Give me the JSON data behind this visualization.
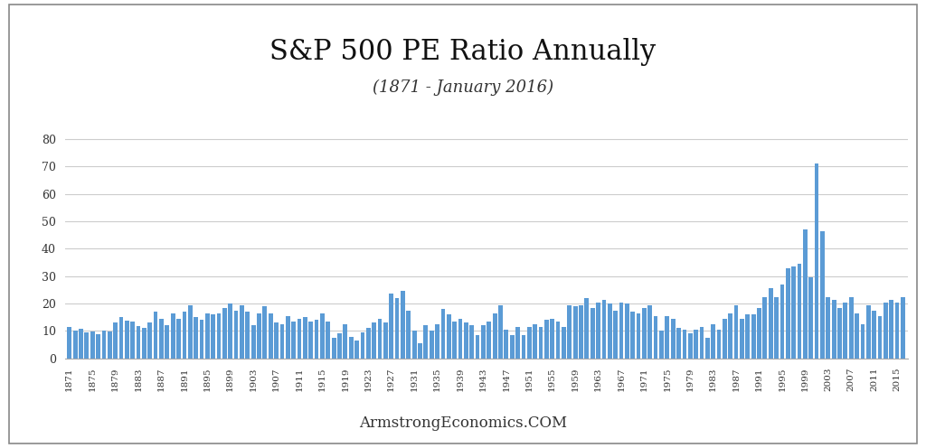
{
  "title": "S&P 500 PE Ratio Annually",
  "subtitle": "(1871 - January 2016)",
  "watermark": "ArmstrongEconomics.COM",
  "bar_color": "#5b9bd5",
  "background_color": "#ffffff",
  "plot_bg_color": "#ffffff",
  "grid_color": "#cccccc",
  "border_color": "#aaaaaa",
  "ylim": [
    0,
    85
  ],
  "yticks": [
    0,
    10,
    20,
    30,
    40,
    50,
    60,
    70,
    80
  ],
  "title_fontsize": 22,
  "subtitle_fontsize": 13,
  "watermark_fontsize": 12,
  "years": [
    1871,
    1872,
    1873,
    1874,
    1875,
    1876,
    1877,
    1878,
    1879,
    1880,
    1881,
    1882,
    1883,
    1884,
    1885,
    1886,
    1887,
    1888,
    1889,
    1890,
    1891,
    1892,
    1893,
    1894,
    1895,
    1896,
    1897,
    1898,
    1899,
    1900,
    1901,
    1902,
    1903,
    1904,
    1905,
    1906,
    1907,
    1908,
    1909,
    1910,
    1911,
    1912,
    1913,
    1914,
    1915,
    1916,
    1917,
    1918,
    1919,
    1920,
    1921,
    1922,
    1923,
    1924,
    1925,
    1926,
    1927,
    1928,
    1929,
    1930,
    1931,
    1932,
    1933,
    1934,
    1935,
    1936,
    1937,
    1938,
    1939,
    1940,
    1941,
    1942,
    1943,
    1944,
    1945,
    1946,
    1947,
    1948,
    1949,
    1950,
    1951,
    1952,
    1953,
    1954,
    1955,
    1956,
    1957,
    1958,
    1959,
    1960,
    1961,
    1962,
    1963,
    1964,
    1965,
    1966,
    1967,
    1968,
    1969,
    1970,
    1971,
    1972,
    1973,
    1974,
    1975,
    1976,
    1977,
    1978,
    1979,
    1980,
    1981,
    1982,
    1983,
    1984,
    1985,
    1986,
    1987,
    1988,
    1989,
    1990,
    1991,
    1992,
    1993,
    1994,
    1995,
    1996,
    1997,
    1998,
    1999,
    2000,
    2001,
    2002,
    2003,
    2004,
    2005,
    2006,
    2007,
    2008,
    2009,
    2010,
    2011,
    2012,
    2013,
    2014,
    2015,
    2016
  ],
  "pe_values": [
    11.6,
    10.2,
    10.8,
    9.5,
    9.7,
    8.9,
    10.1,
    9.8,
    13.2,
    15.0,
    13.8,
    13.5,
    11.8,
    11.0,
    13.0,
    17.0,
    14.5,
    12.0,
    16.5,
    14.5,
    17.0,
    19.5,
    15.0,
    14.0,
    16.5,
    16.0,
    16.5,
    18.5,
    20.0,
    17.5,
    19.5,
    17.0,
    12.0,
    16.5,
    19.0,
    16.5,
    13.0,
    12.5,
    15.5,
    13.5,
    14.5,
    15.0,
    13.5,
    14.0,
    16.5,
    13.5,
    7.5,
    9.0,
    12.5,
    8.0,
    6.5,
    9.5,
    11.0,
    13.0,
    14.5,
    13.0,
    23.5,
    22.0,
    24.5,
    17.5,
    10.0,
    5.5,
    12.0,
    10.0,
    12.5,
    18.0,
    16.0,
    13.5,
    14.5,
    13.0,
    12.0,
    8.5,
    12.0,
    13.5,
    16.5,
    19.5,
    10.5,
    8.5,
    11.5,
    8.5,
    11.5,
    12.5,
    11.5,
    14.0,
    14.5,
    13.5,
    11.5,
    19.5,
    19.0,
    19.5,
    22.0,
    18.5,
    20.5,
    21.5,
    20.0,
    17.5,
    20.5,
    20.0,
    17.0,
    16.5,
    18.5,
    19.5,
    15.5,
    10.0,
    15.5,
    14.5,
    11.0,
    10.5,
    9.0,
    10.5,
    11.5,
    7.5,
    12.5,
    10.5,
    14.5,
    16.5,
    19.5,
    14.5,
    16.0,
    16.0,
    18.5,
    22.5,
    25.5,
    22.5,
    27.0,
    33.0,
    33.5,
    34.5,
    47.0,
    29.5,
    71.0,
    46.5,
    22.5,
    21.5,
    18.5,
    20.5,
    22.5,
    16.5,
    12.5,
    19.5,
    17.5,
    15.5,
    20.5,
    21.5,
    20.5,
    22.5
  ]
}
